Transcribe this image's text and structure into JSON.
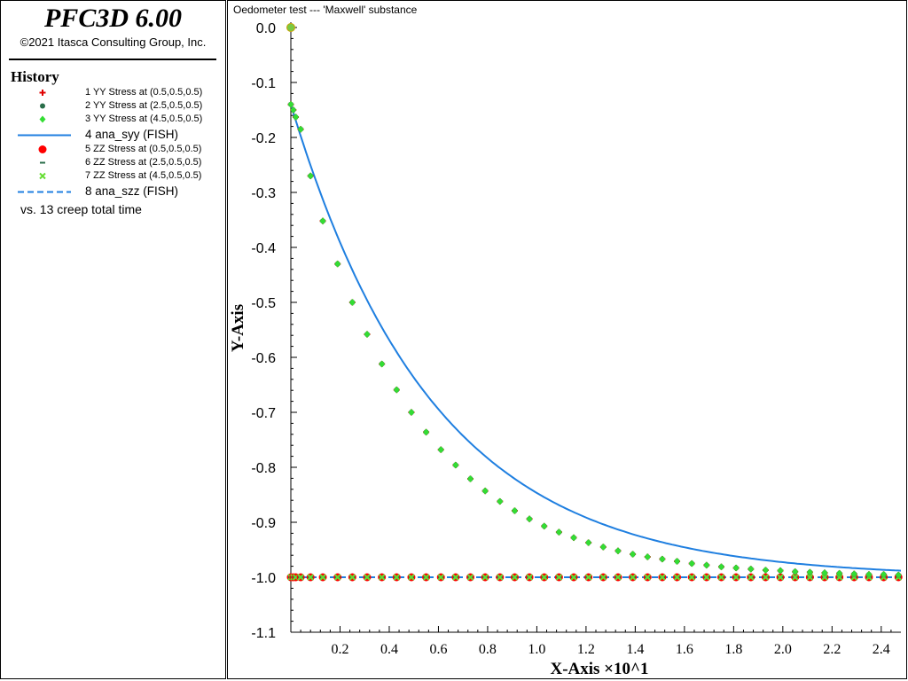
{
  "app": {
    "title": "PFC3D 6.00",
    "copyright": "©2021 Itasca Consulting Group, Inc."
  },
  "history": {
    "title": "History",
    "entries": [
      {
        "label": "1 YY Stress at (0.5,0.5,0.5)",
        "color": "#e00000",
        "marker": "plus"
      },
      {
        "label": "2 YY Stress at (2.5,0.5,0.5)",
        "color": "#2a6e4a",
        "marker": "circle"
      },
      {
        "label": "3 YY Stress at (4.5,0.5,0.5)",
        "color": "#33dd33",
        "marker": "diamond"
      },
      {
        "label": "4 ana_syy (FISH)",
        "color": "#1f7fe0",
        "marker": "line"
      },
      {
        "label": "5 ZZ Stress at (0.5,0.5,0.5)",
        "color": "#ff0000",
        "marker": "big-circle"
      },
      {
        "label": "6 ZZ Stress at (2.5,0.5,0.5)",
        "color": "#2a6e4a",
        "marker": "dash"
      },
      {
        "label": "7 ZZ Stress at (4.5,0.5,0.5)",
        "color": "#66dd33",
        "marker": "x"
      },
      {
        "label": "8 ana_szz (FISH)",
        "color": "#1f7fe0",
        "marker": "dashed-line"
      }
    ],
    "vs_label": "vs. 13 creep total time"
  },
  "plot": {
    "title": "Oedometer test --- 'Maxwell' substance"
  },
  "chart_data": {
    "type": "line",
    "title": "Oedometer test --- 'Maxwell' substance",
    "xlabel": "X-Axis ×10^1",
    "ylabel": "Y-Axis",
    "xlim": [
      0,
      2.48
    ],
    "ylim": [
      -1.1,
      0.0
    ],
    "xticks": [
      0.2,
      0.4,
      0.6,
      0.8,
      1.0,
      1.2,
      1.4,
      1.6,
      1.8,
      2.0,
      2.2,
      2.4
    ],
    "xtick_labels": [
      "0.2",
      "0.4",
      "0.6",
      "0.8",
      "1.0",
      "1.2",
      "1.4",
      "1.6",
      "1.8",
      "2.0",
      "2.2",
      "2.4"
    ],
    "yticks": [
      0.0,
      -0.1,
      -0.2,
      -0.3,
      -0.4,
      -0.5,
      -0.6,
      -0.7,
      -0.8,
      -0.9,
      -1.0,
      -1.1
    ],
    "ytick_labels": [
      "0.0",
      "-0.1",
      "-0.2",
      "-0.3",
      "-0.4",
      "-0.5",
      "-0.6",
      "-0.7",
      "-0.8",
      "-0.9",
      "-1.0",
      "-1.1"
    ],
    "grid": false,
    "yy_x": [
      0.0,
      0.01,
      0.02,
      0.04,
      0.08,
      0.13,
      0.19,
      0.25,
      0.31,
      0.37,
      0.43,
      0.49,
      0.55,
      0.61,
      0.67,
      0.73,
      0.79,
      0.85,
      0.91,
      0.97,
      1.03,
      1.09,
      1.15,
      1.21,
      1.27,
      1.33,
      1.39,
      1.45,
      1.51,
      1.57,
      1.63,
      1.69,
      1.75,
      1.81,
      1.87,
      1.93,
      1.99,
      2.05,
      2.11,
      2.17,
      2.23,
      2.29,
      2.35,
      2.41,
      2.47
    ],
    "yy_y": [
      -0.14,
      -0.15,
      -0.163,
      -0.185,
      -0.27,
      -0.352,
      -0.43,
      -0.5,
      -0.558,
      -0.612,
      -0.659,
      -0.7,
      -0.736,
      -0.768,
      -0.796,
      -0.821,
      -0.843,
      -0.862,
      -0.879,
      -0.894,
      -0.907,
      -0.918,
      -0.928,
      -0.937,
      -0.945,
      -0.952,
      -0.958,
      -0.963,
      -0.967,
      -0.971,
      -0.975,
      -0.978,
      -0.981,
      -0.983,
      -0.985,
      -0.987,
      -0.988,
      -0.99,
      -0.991,
      -0.992,
      -0.993,
      -0.994,
      -0.995,
      -0.995,
      -0.996
    ],
    "yy_first_point": {
      "x": 0.0,
      "y": 0.0
    },
    "zz_x": [
      0.0,
      0.01,
      0.02,
      0.04,
      0.08,
      0.13,
      0.19,
      0.25,
      0.31,
      0.37,
      0.43,
      0.49,
      0.55,
      0.61,
      0.67,
      0.73,
      0.79,
      0.85,
      0.91,
      0.97,
      1.03,
      1.09,
      1.15,
      1.21,
      1.27,
      1.33,
      1.39,
      1.45,
      1.51,
      1.57,
      1.63,
      1.69,
      1.75,
      1.81,
      1.87,
      1.93,
      1.99,
      2.05,
      2.11,
      2.17,
      2.23,
      2.29,
      2.35,
      2.41,
      2.47
    ],
    "zz_y": -1.0,
    "syy_curve": {
      "y0": -0.14,
      "y_inf": -1.0,
      "tau": 0.58
    }
  }
}
